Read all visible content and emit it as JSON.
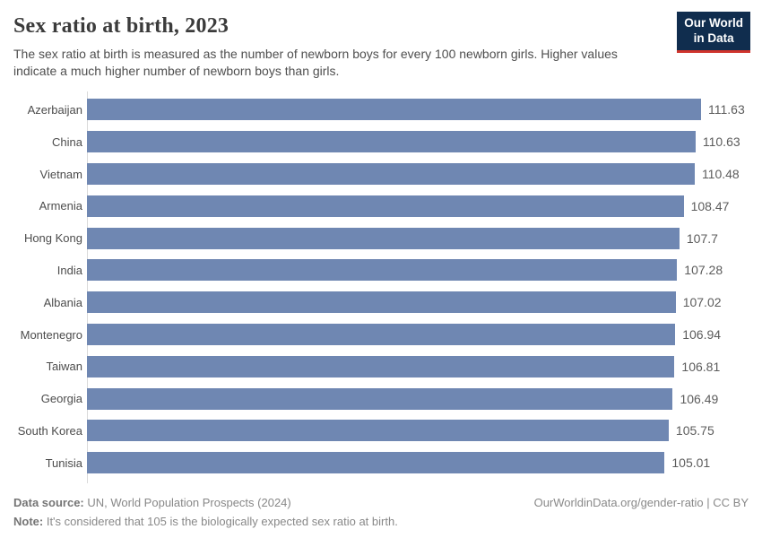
{
  "header": {
    "title": "Sex ratio at birth, 2023",
    "subtitle": "The sex ratio at birth is measured as the number of newborn boys for every 100 newborn girls. Higher values indicate a much higher number of newborn boys than girls.",
    "logo": {
      "line1": "Our World",
      "line2": "in Data"
    }
  },
  "chart_data": {
    "type": "bar",
    "orientation": "horizontal",
    "title": "Sex ratio at birth, 2023",
    "xlabel": "",
    "ylabel": "",
    "xlim": [
      0,
      111.63
    ],
    "grid": false,
    "legend": false,
    "categories": [
      "Azerbaijan",
      "China",
      "Vietnam",
      "Armenia",
      "Hong Kong",
      "India",
      "Albania",
      "Montenegro",
      "Taiwan",
      "Georgia",
      "South Korea",
      "Tunisia"
    ],
    "values": [
      111.63,
      110.63,
      110.48,
      108.47,
      107.7,
      107.28,
      107.02,
      106.94,
      106.81,
      106.49,
      105.75,
      105.01
    ],
    "value_labels": [
      "111.63",
      "110.63",
      "110.48",
      "108.47",
      "107.7",
      "107.28",
      "107.02",
      "106.94",
      "106.81",
      "106.49",
      "105.75",
      "105.01"
    ]
  },
  "footer": {
    "data_source_label": "Data source:",
    "data_source_text": " UN, World Population Prospects (2024)",
    "note_label": "Note:",
    "note_text": " It's considered that 105 is the biologically expected sex ratio at birth.",
    "attribution": "OurWorldinData.org/gender-ratio | CC BY"
  },
  "colors": {
    "bar": "#6f87b2",
    "logo_bg": "#102d4e",
    "logo_stripe": "#d0342c",
    "axis_line": "#dadada"
  }
}
